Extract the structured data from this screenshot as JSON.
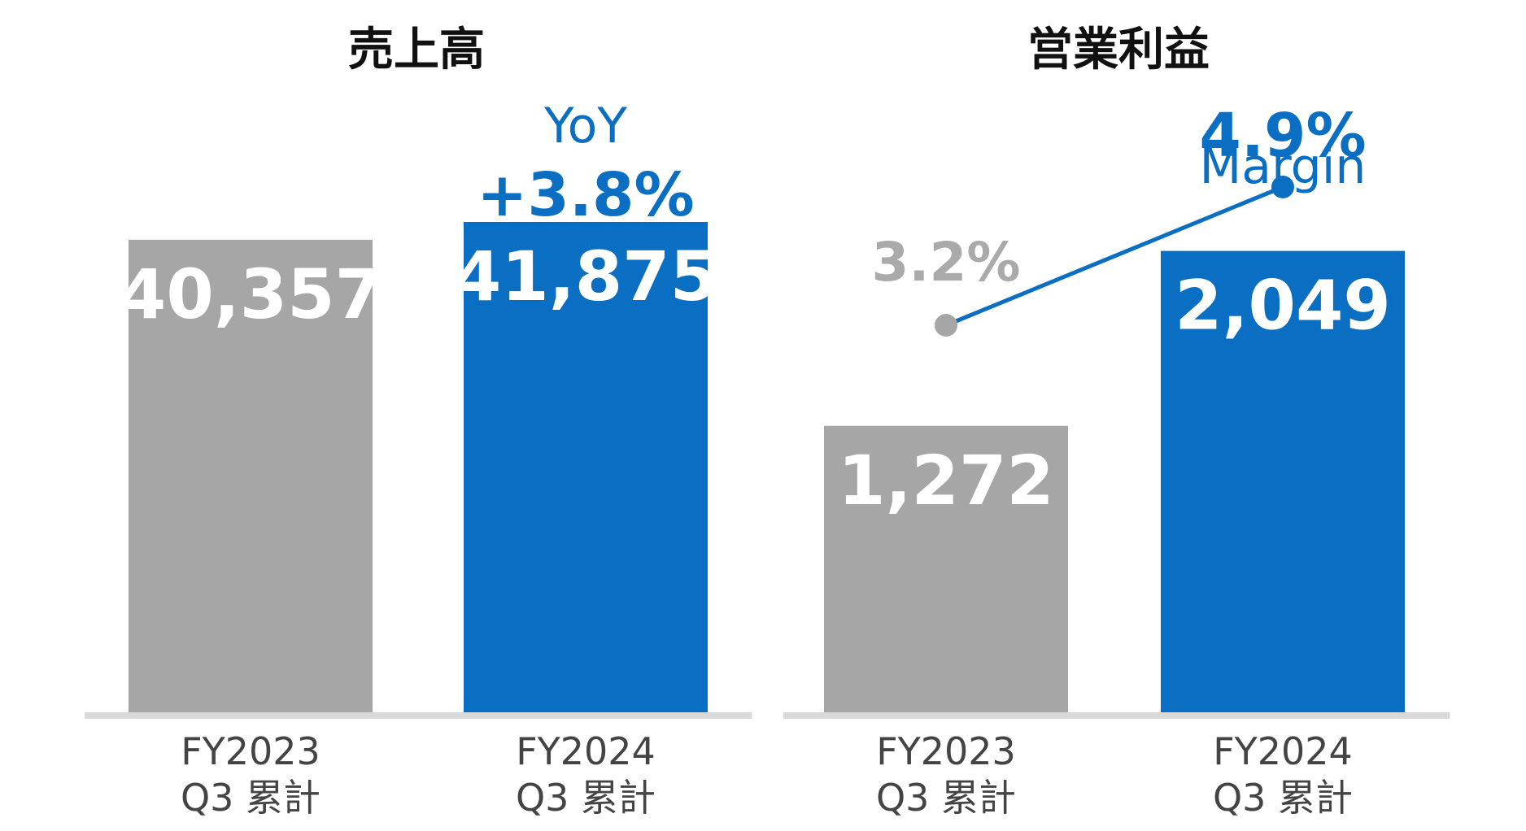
{
  "colors": {
    "prior": "#a6a6a6",
    "current": "#0a6fc2",
    "baseline": "#d9d9d9",
    "title": "#111111",
    "category": "#444444"
  },
  "chart_data": [
    {
      "type": "bar",
      "title": "売上高",
      "categories": [
        {
          "line1": "FY2023",
          "line2": "Q3 累計"
        },
        {
          "line1": "FY2024",
          "line2": "Q3 累計"
        }
      ],
      "values": [
        40357,
        41875
      ],
      "value_labels": [
        "40,357",
        "41,875"
      ],
      "annotation": {
        "heading": "YoY",
        "value": "+3.8%"
      },
      "ylim": [
        0,
        50000
      ]
    },
    {
      "type": "bar",
      "title": "営業利益",
      "categories": [
        {
          "line1": "FY2023",
          "line2": "Q3 累計"
        },
        {
          "line1": "FY2024",
          "line2": "Q3 累計"
        }
      ],
      "values": [
        1272,
        2049
      ],
      "value_labels": [
        "1,272",
        "2,049"
      ],
      "ylim": [
        0,
        2600
      ],
      "ratio_series": {
        "name": "Margin",
        "values": [
          3.2,
          4.9
        ],
        "labels": [
          "3.2%",
          "4.9%"
        ],
        "ylim": [
          0,
          6
        ]
      }
    }
  ]
}
